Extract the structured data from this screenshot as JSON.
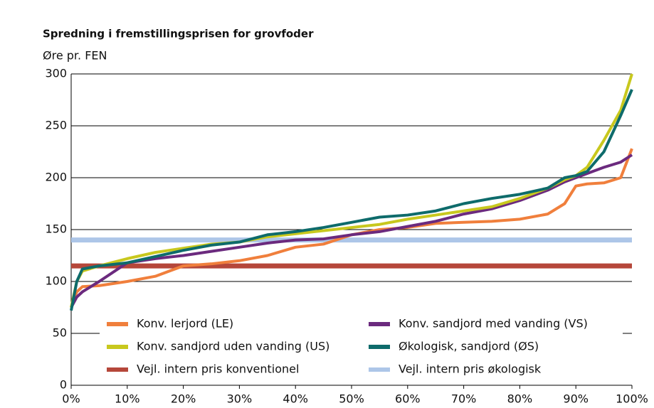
{
  "chart_data": {
    "type": "line",
    "title": "Spredning i fremstillingsprisen for grovfoder",
    "y_label": "Øre pr. FEN",
    "x": [
      0,
      1,
      2,
      5,
      10,
      15,
      20,
      25,
      30,
      35,
      40,
      45,
      50,
      55,
      60,
      65,
      70,
      75,
      80,
      85,
      88,
      90,
      92,
      95,
      98,
      100
    ],
    "series": [
      {
        "name": "Konv. lerjord (LE)",
        "color": "#f07f3c",
        "values": [
          75,
          90,
          95,
          96,
          100,
          105,
          115,
          117,
          120,
          125,
          133,
          136,
          145,
          150,
          152,
          156,
          157,
          158,
          160,
          165,
          175,
          192,
          194,
          195,
          200,
          228
        ]
      },
      {
        "name": "Konv. sandjord med vanding (VS)",
        "color": "#6b2a7e",
        "values": [
          75,
          85,
          90,
          100,
          118,
          122,
          125,
          129,
          133,
          137,
          140,
          141,
          145,
          148,
          153,
          158,
          165,
          170,
          178,
          188,
          196,
          200,
          204,
          210,
          215,
          222
        ]
      },
      {
        "name": "Konv. sandjord uden vanding (US)",
        "color": "#c8c81e",
        "values": [
          75,
          100,
          110,
          115,
          122,
          128,
          132,
          136,
          138,
          143,
          146,
          149,
          152,
          155,
          160,
          164,
          168,
          172,
          180,
          190,
          198,
          202,
          210,
          236,
          265,
          300
        ]
      },
      {
        "name": "Økologisk, sandjord (ØS)",
        "color": "#0e6b6b",
        "values": [
          72,
          100,
          112,
          115,
          118,
          124,
          130,
          135,
          138,
          145,
          148,
          152,
          157,
          162,
          164,
          168,
          175,
          180,
          184,
          190,
          200,
          202,
          206,
          225,
          260,
          285
        ]
      }
    ],
    "reference_lines": [
      {
        "name": "Vejl. intern pris konventionel",
        "color": "#b5473a",
        "value": 115
      },
      {
        "name": "Vejl. intern pris økologisk",
        "color": "#adc6e8",
        "value": 140
      }
    ],
    "xlim": [
      0,
      100
    ],
    "xticks": [
      {
        "value": 0,
        "label": "0%"
      },
      {
        "value": 10,
        "label": "10%"
      },
      {
        "value": 20,
        "label": "20%"
      },
      {
        "value": 30,
        "label": "30%"
      },
      {
        "value": 40,
        "label": "40%"
      },
      {
        "value": 50,
        "label": "50%"
      },
      {
        "value": 60,
        "label": "60%"
      },
      {
        "value": 70,
        "label": "70%"
      },
      {
        "value": 80,
        "label": "80%"
      },
      {
        "value": 90,
        "label": "90%"
      },
      {
        "value": 100,
        "label": "100%"
      }
    ],
    "ylim": [
      0,
      300
    ],
    "yticks": [
      0,
      50,
      100,
      150,
      200,
      250,
      300
    ],
    "grid": true
  }
}
